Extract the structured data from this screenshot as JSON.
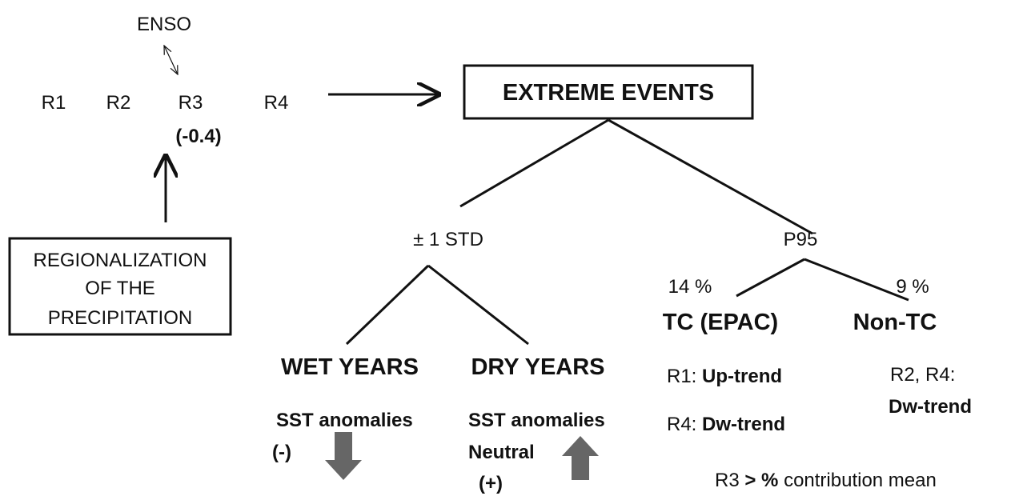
{
  "enso": "ENSO",
  "regions": [
    "R1",
    "R2",
    "R3",
    "R4"
  ],
  "r3_value": "(-0.4)",
  "regionalization": [
    "REGIONALIZATION",
    "OF THE",
    "PRECIPITATION"
  ],
  "extreme_events": "EXTREME EVENTS",
  "std": {
    "label": "± 1 STD",
    "wet": {
      "title": "WET YEARS",
      "sst": "SST anomalies",
      "sign": "(-)"
    },
    "dry": {
      "title": "DRY YEARS",
      "sst": "SST anomalies",
      "state": "Neutral",
      "sign": "(+)"
    }
  },
  "p95": {
    "label": "P95",
    "tc": {
      "percent": "14 %",
      "title": "TC (EPAC)",
      "notes": [
        {
          "region": "R1:",
          "trend": "Up-trend"
        },
        {
          "region": "R4:",
          "trend": "Dw-trend"
        }
      ]
    },
    "nontc": {
      "percent": "9 %",
      "title": "Non-TC",
      "notes": [
        {
          "region": "R2, R4:",
          "trend": "Dw-trend"
        }
      ]
    }
  },
  "footer": {
    "region": "R3",
    "comparator": ">",
    "percent": "%",
    "text": "contribution mean"
  }
}
